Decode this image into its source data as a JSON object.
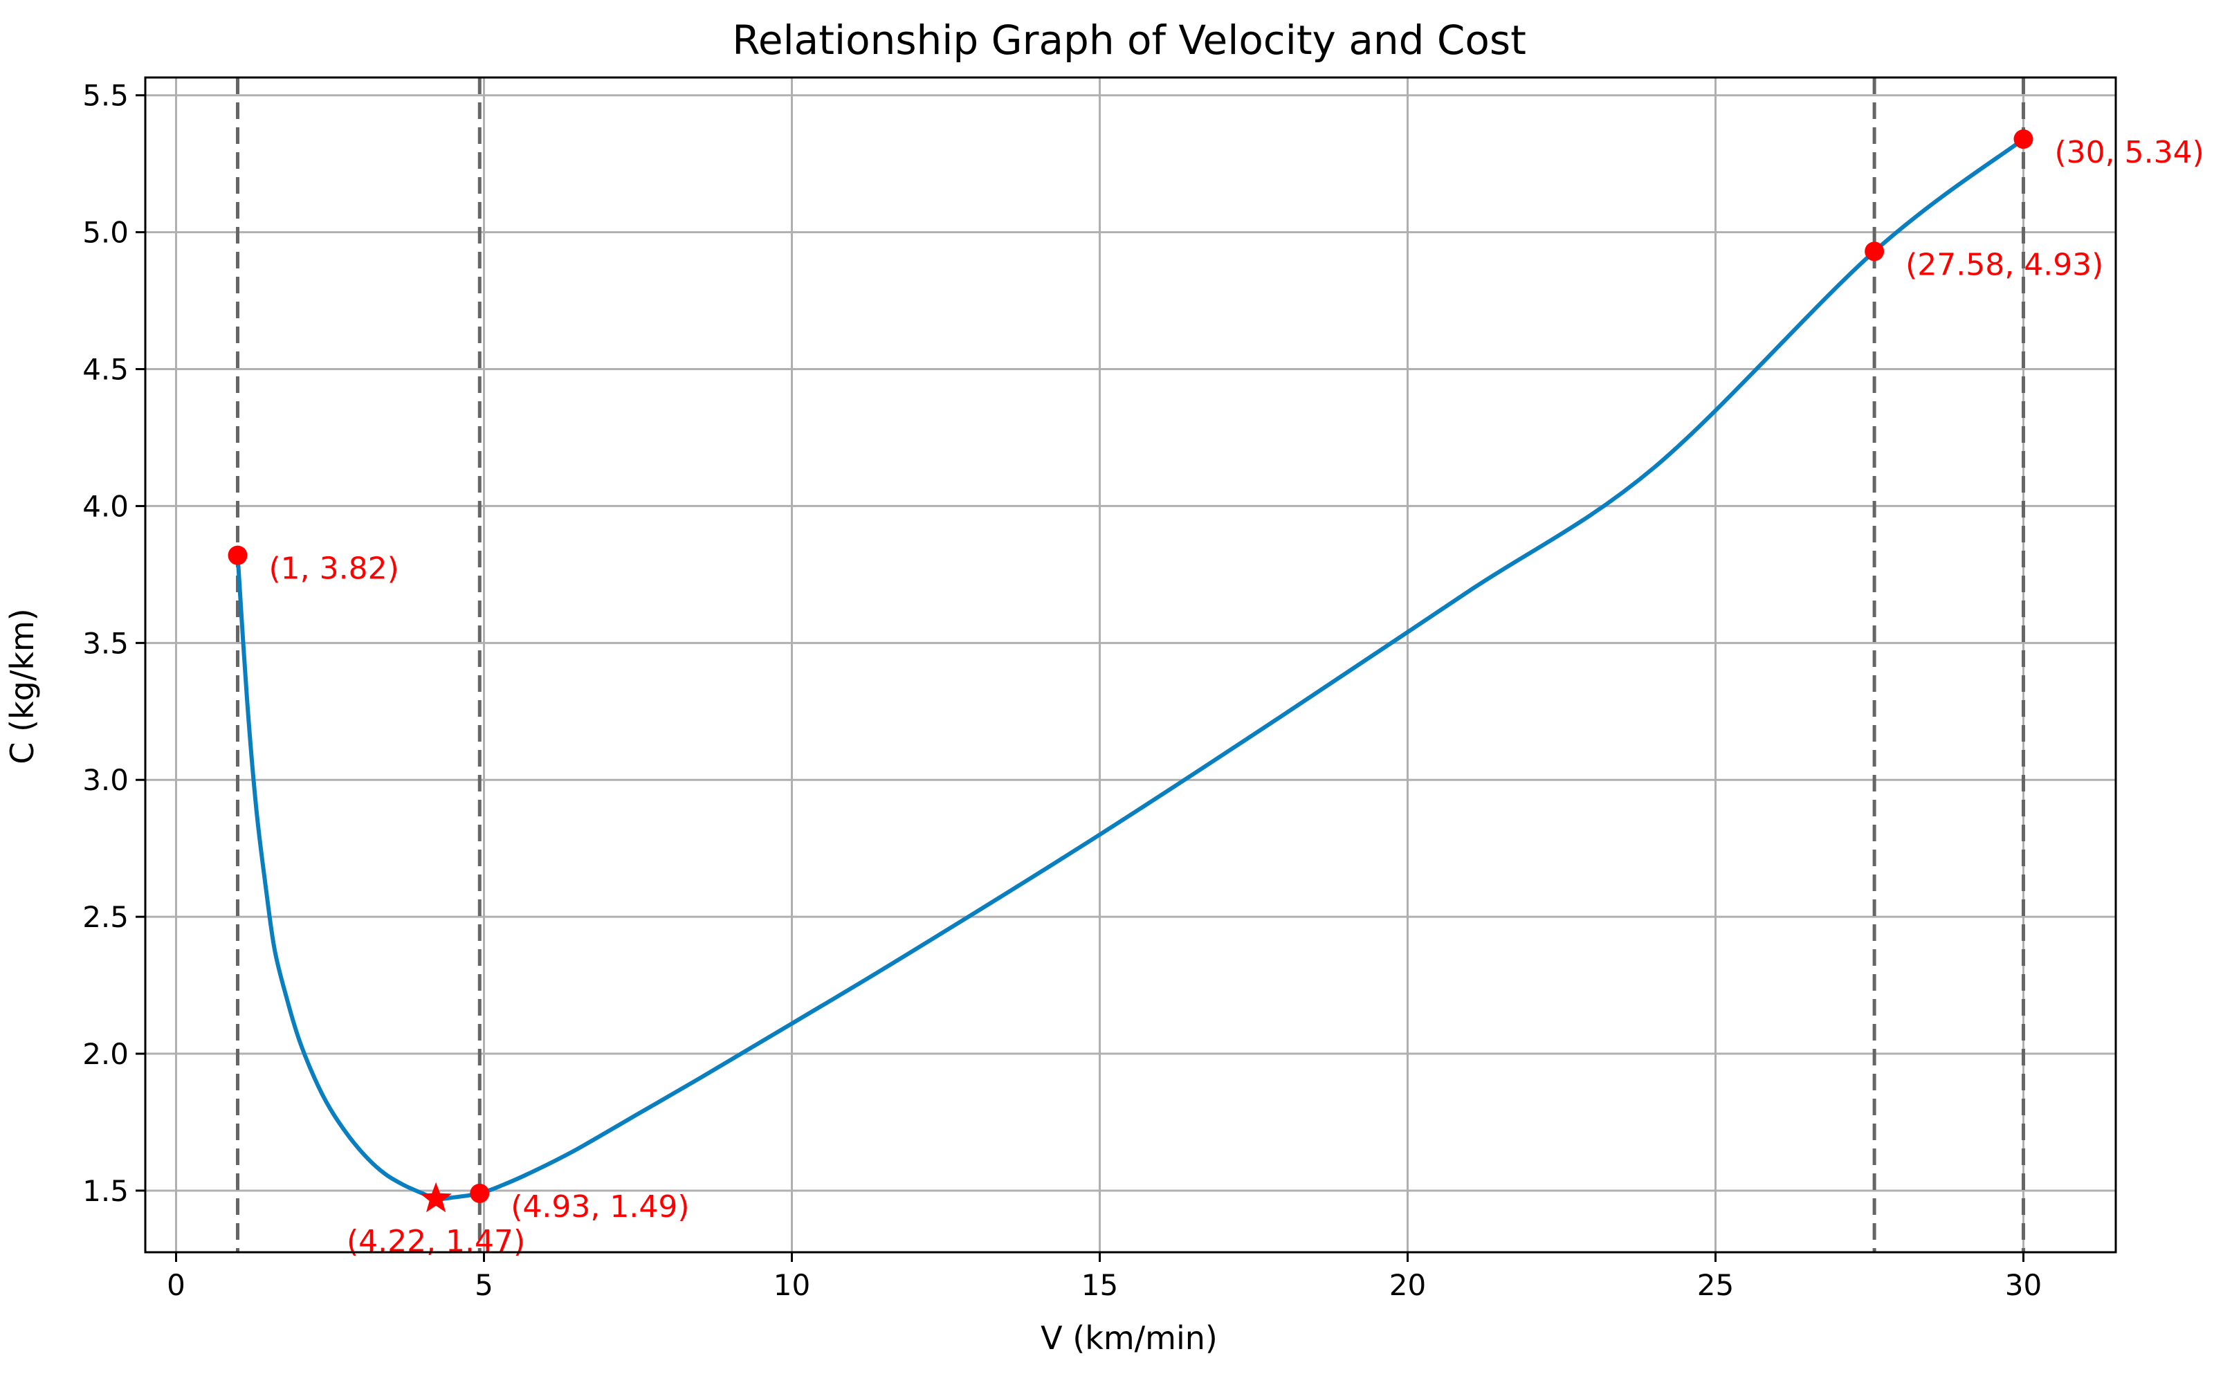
{
  "chart_data": {
    "type": "line",
    "title": "Relationship Graph of Velocity and Cost",
    "xlabel": "V (km/min)",
    "ylabel": "C (kg/km)",
    "xlim": [
      -0.5,
      31.5
    ],
    "ylim": [
      1.275,
      5.565
    ],
    "xticks": [
      0,
      5,
      10,
      15,
      20,
      25,
      30
    ],
    "xtick_labels": [
      "0",
      "5",
      "10",
      "15",
      "20",
      "25",
      "30"
    ],
    "yticks": [
      1.5,
      2.0,
      2.5,
      3.0,
      3.5,
      4.0,
      4.5,
      5.0,
      5.5
    ],
    "ytick_labels": [
      "1.5",
      "2.0",
      "2.5",
      "3.0",
      "3.5",
      "4.0",
      "4.5",
      "5.0",
      "5.5"
    ],
    "grid": true,
    "line_color": "#0a7fc0",
    "point_color": "#ff0000",
    "vline_color": "#666666",
    "series": [
      {
        "x": [
          1.0,
          1.15,
          1.3,
          1.45,
          1.6,
          1.8,
          2.0,
          2.25,
          2.5,
          2.8,
          3.1,
          3.4,
          3.7,
          4.0,
          4.22,
          4.5,
          4.93,
          5.3,
          5.8,
          6.5,
          7.5,
          8.5,
          10.0,
          12.0,
          15.0,
          18.0,
          21.0,
          24.0,
          27.58,
          30.0
        ],
        "y": [
          3.82,
          3.3,
          2.9,
          2.62,
          2.38,
          2.2,
          2.05,
          1.91,
          1.8,
          1.7,
          1.62,
          1.56,
          1.52,
          1.49,
          1.47,
          1.475,
          1.49,
          1.52,
          1.57,
          1.65,
          1.78,
          1.91,
          2.11,
          2.38,
          2.8,
          3.24,
          3.69,
          4.14,
          4.93,
          5.34
        ]
      }
    ],
    "vlines": [
      1,
      4.93,
      27.58,
      30
    ],
    "points": [
      {
        "x": 1,
        "y": 3.82,
        "marker": "circle",
        "label": "(1, 3.82)",
        "label_pos": "right"
      },
      {
        "x": 4.93,
        "y": 1.49,
        "marker": "circle",
        "label": "(4.93, 1.49)",
        "label_pos": "right"
      },
      {
        "x": 27.58,
        "y": 4.93,
        "marker": "circle",
        "label": "(27.58, 4.93)",
        "label_pos": "right"
      },
      {
        "x": 30,
        "y": 5.34,
        "marker": "circle",
        "label": "(30, 5.34)",
        "label_pos": "right"
      },
      {
        "x": 4.22,
        "y": 1.47,
        "marker": "star",
        "label": "(4.22, 1.47)",
        "label_pos": "below"
      }
    ]
  }
}
